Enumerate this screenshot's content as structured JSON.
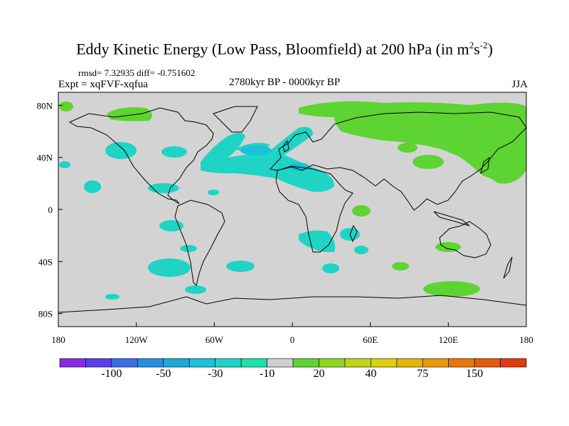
{
  "title": {
    "main": "Eddy Kinetic Energy (Low Pass, Bloomfield) at 200 hPa (in m",
    "exp1": "2",
    "mid": "s",
    "exp2": "-2",
    "close": ")"
  },
  "stats": "rmsd= 7.32935  diff= -0.751602",
  "experiment": "Expt = xqFVF-xqfua",
  "period": "2780kyr BP - 0000kyr BP",
  "season": "JJA",
  "map": {
    "background_color": "#d3d3d3",
    "lat_range": [
      -90,
      90
    ],
    "lon_range": [
      -180,
      180
    ],
    "x_ticks": [
      {
        "lon": -180,
        "label": "180"
      },
      {
        "lon": -120,
        "label": "120W"
      },
      {
        "lon": -60,
        "label": "60W"
      },
      {
        "lon": 0,
        "label": "0"
      },
      {
        "lon": 60,
        "label": "60E"
      },
      {
        "lon": 120,
        "label": "120E"
      },
      {
        "lon": 180,
        "label": "180"
      }
    ],
    "y_ticks": [
      {
        "lat": 80,
        "label": "80N"
      },
      {
        "lat": 40,
        "label": "40N"
      },
      {
        "lat": 0,
        "label": "0"
      },
      {
        "lat": -40,
        "label": "40S"
      },
      {
        "lat": -80,
        "label": "80S"
      }
    ]
  },
  "colorbar": {
    "colors": [
      "#8a2be2",
      "#5a3fe6",
      "#3a6ee0",
      "#2a8ee0",
      "#1ca9d8",
      "#19c2d8",
      "#1fd4c4",
      "#1fe0a8",
      "#cfcfcf",
      "#5ed432",
      "#8ed420",
      "#bcd41a",
      "#dcd010",
      "#e4b40a",
      "#e99a08",
      "#e87808",
      "#e45a0a",
      "#e03a10"
    ],
    "labels": [
      {
        "after_box": 2,
        "text": "-100"
      },
      {
        "after_box": 4,
        "text": "-50"
      },
      {
        "after_box": 6,
        "text": "-30"
      },
      {
        "after_box": 8,
        "text": "-10"
      },
      {
        "after_box": 10,
        "text": "20"
      },
      {
        "after_box": 12,
        "text": "40"
      },
      {
        "after_box": 14,
        "text": "75"
      },
      {
        "after_box": 16,
        "text": "150"
      }
    ]
  }
}
